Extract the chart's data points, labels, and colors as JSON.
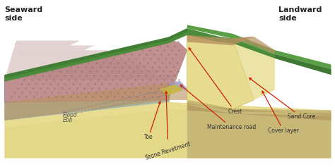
{
  "fig_width": 4.74,
  "fig_height": 2.37,
  "dpi": 100,
  "bg_color": "#ffffff",
  "labels": {
    "seaward": "Seaward\nside",
    "landward": "Landward\nside",
    "flood": "Flood",
    "ebb": "Ebb",
    "toe": "Toe",
    "stone_revetment": "Stone Revetment",
    "maintenance_road": "Maintenance road",
    "crest": "Crest",
    "cover_layer": "Cover layer",
    "sand_core": "Sand Core"
  },
  "colors": {
    "grass_top": "#4a8c3a",
    "grass_mid": "#5a9e45",
    "grass_dark": "#3a7030",
    "grass_right": "#3e7e32",
    "revetment_pink": "#c09090",
    "revetment_dot": "#9a6868",
    "revetment_stripe": "#b08080",
    "sand_yellow": "#e8dc90",
    "sand_dark": "#d8cc78",
    "base_tan": "#c8b878",
    "base_brown": "#b09858",
    "cover_brown": "#b89060",
    "cover_dark": "#a07848",
    "side_brown": "#987040",
    "sea_gray1": "#a8b8a0",
    "sea_gray2": "#90a890",
    "sea_gray3": "#788a78",
    "water_blue": "#88aab8",
    "water_mid": "#7898a8",
    "water_dark": "#608898",
    "wave_white": "#e8f0f0",
    "maint_road_blue": "#9090c0",
    "maint_road_yellow": "#c8b840",
    "ann_red": "#cc2200",
    "text_dark": "#333333"
  }
}
